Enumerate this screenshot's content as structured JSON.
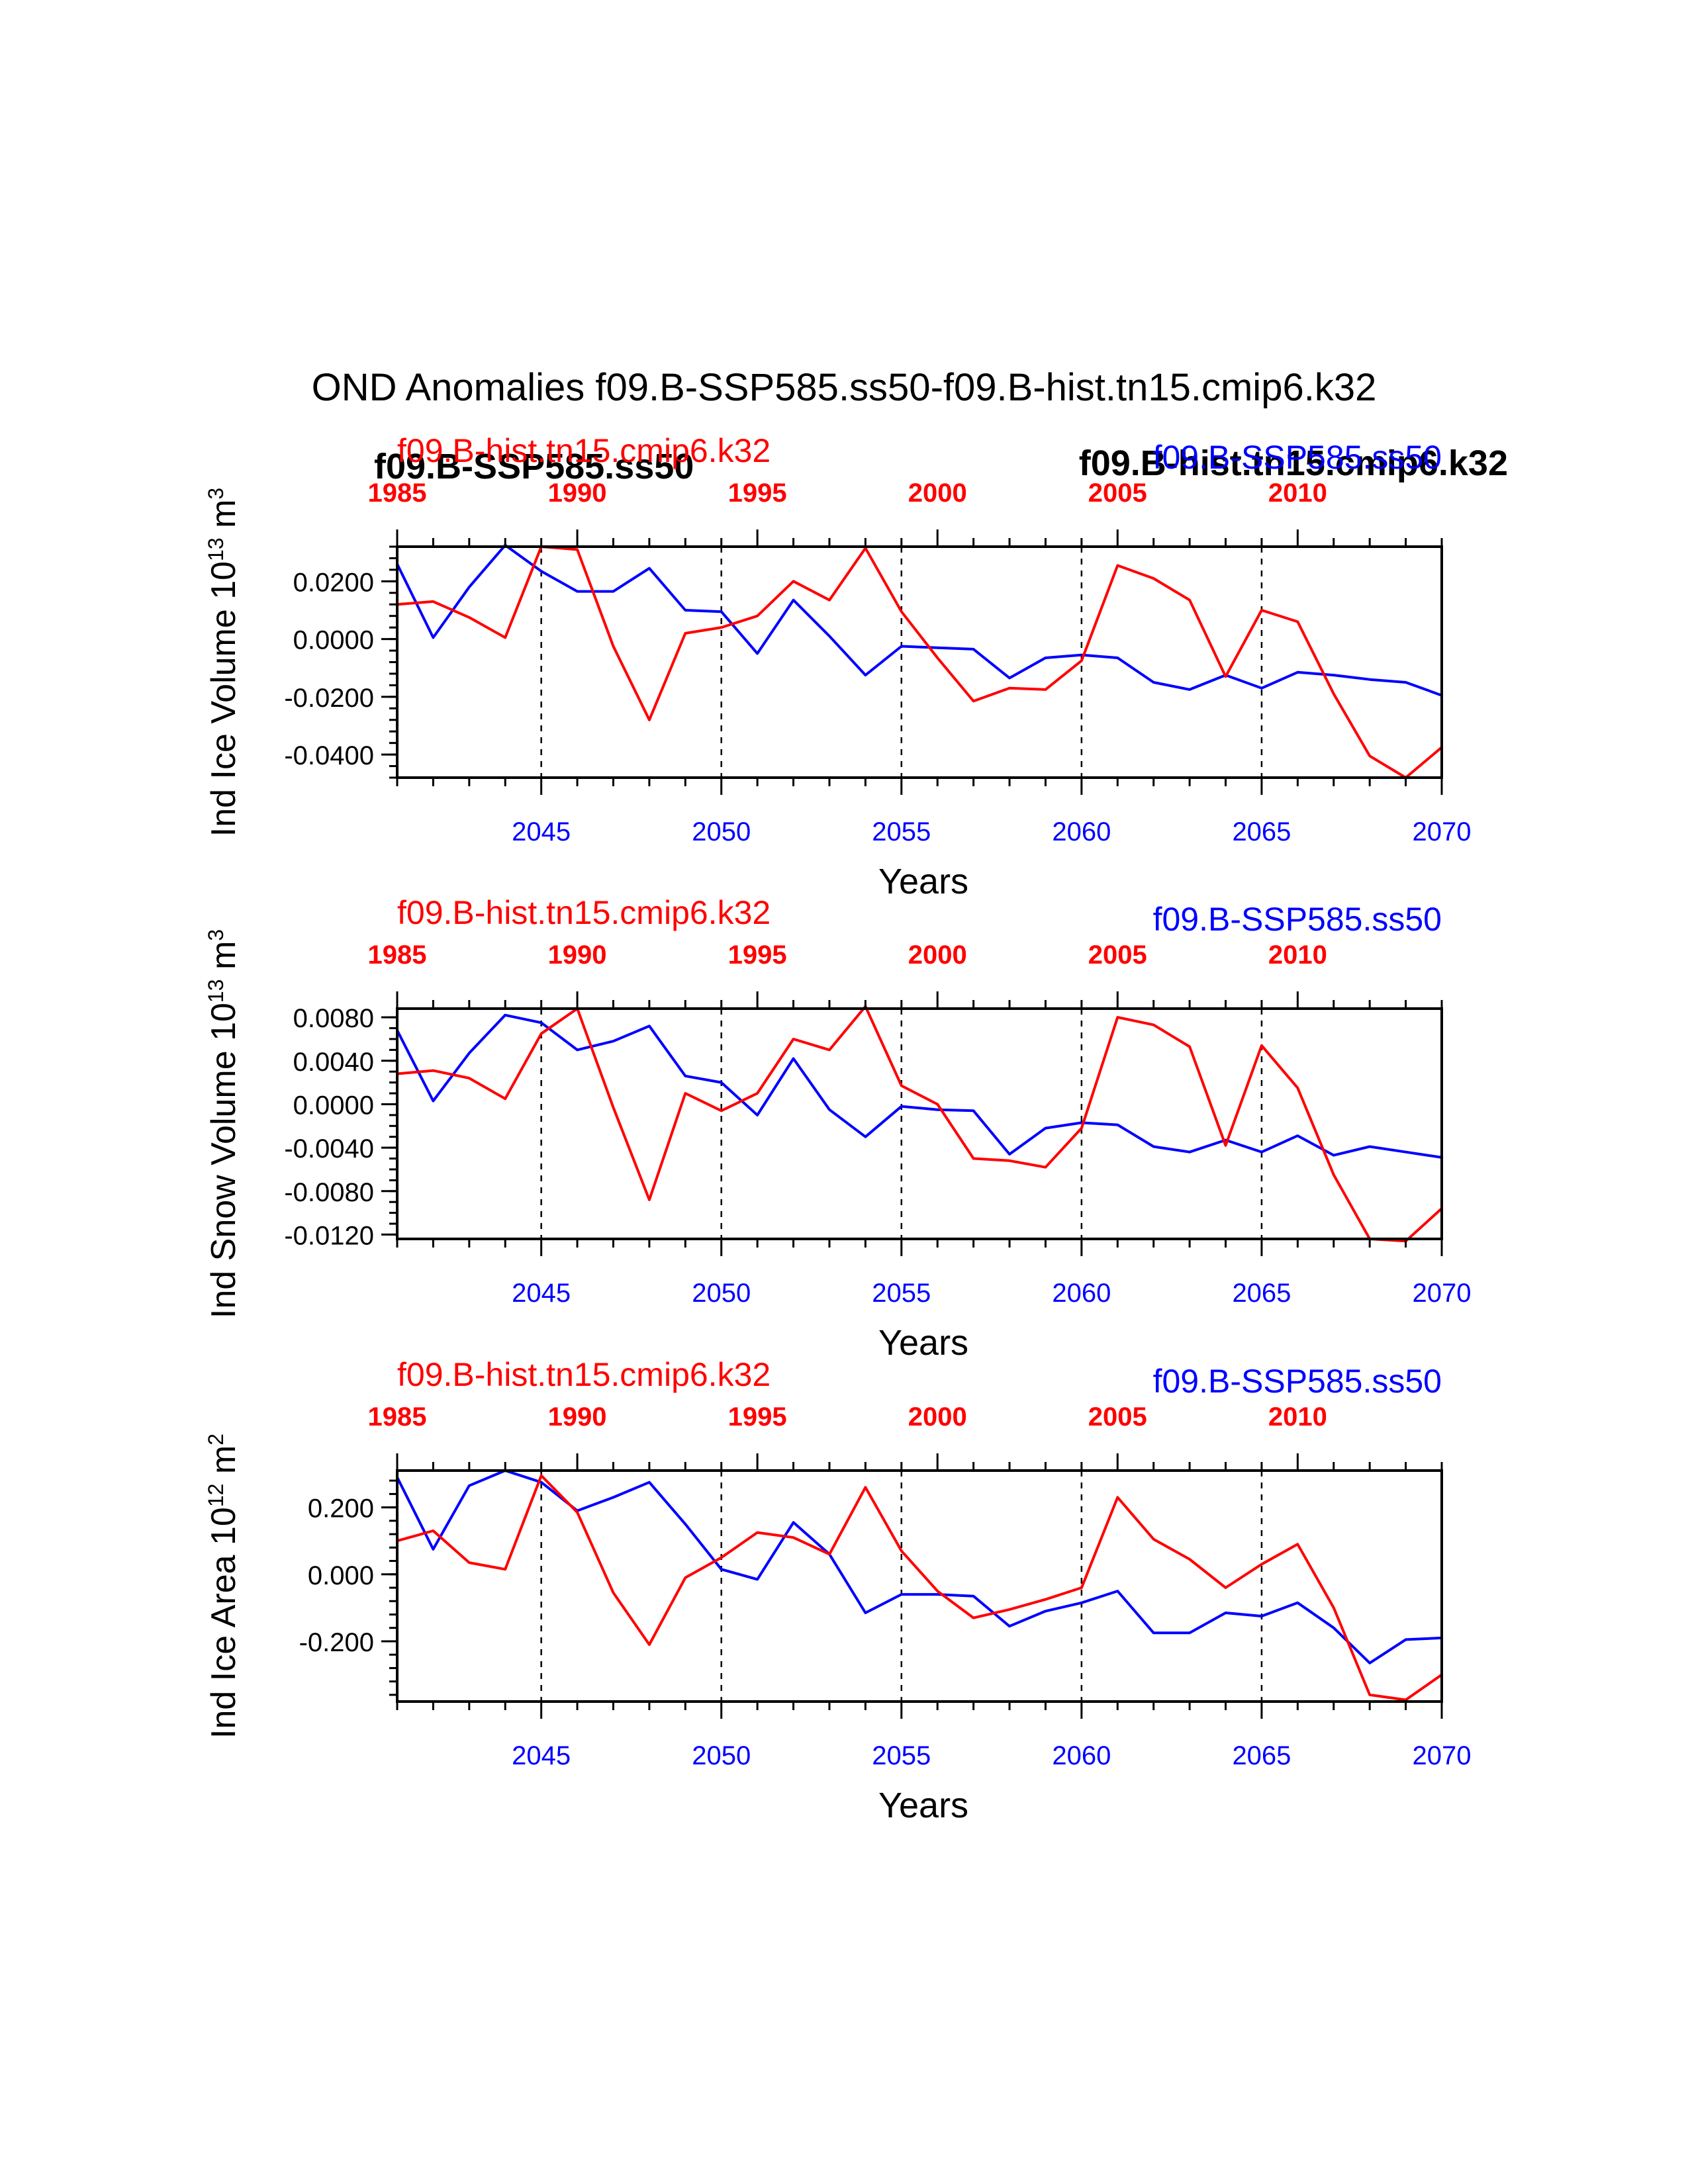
{
  "title": "OND Anomalies f09.B-SSP585.ss50-f09.B-hist.tn15.cmip6.k32",
  "colors": {
    "hist": "#ff0000",
    "ssp": "#0000ff",
    "axis": "#000000"
  },
  "overlay_labels": {
    "ssp_bold": "f09.B-SSP585.ss50",
    "hist_bold": "f09.B-hist.tn15.cmip6.k32"
  },
  "chart_data": [
    {
      "type": "line",
      "ylabel": "Ind Ice Volume 10",
      "ylabel_exp": "13",
      "ylabel_unit": "m",
      "ylabel_unit_exp": "3",
      "xlabel": "Years",
      "top_series_label": "f09.B-hist.tn15.cmip6.k32",
      "bottom_series_label": "f09.B-SSP585.ss50",
      "ylim": [
        -0.048,
        0.032
      ],
      "yticks": [
        -0.04,
        -0.02,
        0.0,
        0.02
      ],
      "ytick_labels": [
        "-0.0400",
        "-0.0200",
        "0.0000",
        "0.0200"
      ],
      "yminor_step": 0.004,
      "xlim": [
        2041,
        2070
      ],
      "top_xlim": [
        1985,
        2014
      ],
      "bottom_ticks": [
        2045,
        2050,
        2055,
        2060,
        2065,
        2070
      ],
      "bottom_tick_labels": [
        "2045",
        "2050",
        "2055",
        "2060",
        "2065",
        "2070"
      ],
      "top_ticks": [
        1985,
        1990,
        1995,
        2000,
        2005,
        2010
      ],
      "top_tick_labels": [
        "1985",
        "1990",
        "1995",
        "2000",
        "2005",
        "2010"
      ],
      "dashed_x": [
        2045,
        2050,
        2055,
        2060,
        2065
      ],
      "x": [
        2041,
        2042,
        2043,
        2044,
        2045,
        2046,
        2047,
        2048,
        2049,
        2050,
        2051,
        2052,
        2053,
        2054,
        2055,
        2056,
        2057,
        2058,
        2059,
        2060,
        2061,
        2062,
        2063,
        2064,
        2065,
        2066,
        2067,
        2068,
        2069,
        2070
      ],
      "series": [
        {
          "key": "ssp",
          "values": [
            0.026,
            0.0005,
            0.018,
            0.0325,
            0.0235,
            0.0165,
            0.0165,
            0.0245,
            0.01,
            0.0095,
            -0.005,
            0.0135,
            0.001,
            -0.0125,
            -0.0025,
            -0.003,
            -0.0035,
            -0.0135,
            -0.0065,
            -0.0055,
            -0.0065,
            -0.015,
            -0.0175,
            -0.0125,
            -0.017,
            -0.0115,
            -0.0125,
            -0.014,
            -0.015,
            -0.0195
          ]
        },
        {
          "key": "hist",
          "values": [
            0.012,
            0.013,
            0.0075,
            0.0005,
            0.032,
            0.031,
            -0.0025,
            -0.028,
            0.002,
            0.004,
            0.008,
            0.02,
            0.0135,
            0.0315,
            0.0095,
            -0.0065,
            -0.0215,
            -0.017,
            -0.0175,
            -0.0075,
            0.0255,
            0.021,
            0.0135,
            -0.013,
            0.01,
            0.006,
            -0.019,
            -0.0405,
            -0.048,
            -0.0375
          ]
        }
      ]
    },
    {
      "type": "line",
      "ylabel": "Ind Snow Volume 10",
      "ylabel_exp": "13",
      "ylabel_unit": "m",
      "ylabel_unit_exp": "3",
      "xlabel": "Years",
      "top_series_label": "f09.B-hist.tn15.cmip6.k32",
      "bottom_series_label": "f09.B-SSP585.ss50",
      "ylim": [
        -0.0124,
        0.0088
      ],
      "yticks": [
        -0.012,
        -0.008,
        -0.004,
        0.0,
        0.004,
        0.008
      ],
      "ytick_labels": [
        "-0.0120",
        "-0.0080",
        "-0.0040",
        "0.0000",
        "0.0040",
        "0.0080"
      ],
      "yminor_step": 0.001,
      "xlim": [
        2041,
        2070
      ],
      "top_xlim": [
        1985,
        2014
      ],
      "bottom_ticks": [
        2045,
        2050,
        2055,
        2060,
        2065,
        2070
      ],
      "bottom_tick_labels": [
        "2045",
        "2050",
        "2055",
        "2060",
        "2065",
        "2070"
      ],
      "top_ticks": [
        1985,
        1990,
        1995,
        2000,
        2005,
        2010
      ],
      "top_tick_labels": [
        "1985",
        "1990",
        "1995",
        "2000",
        "2005",
        "2010"
      ],
      "dashed_x": [
        2045,
        2050,
        2055,
        2060,
        2065
      ],
      "x": [
        2041,
        2042,
        2043,
        2044,
        2045,
        2046,
        2047,
        2048,
        2049,
        2050,
        2051,
        2052,
        2053,
        2054,
        2055,
        2056,
        2057,
        2058,
        2059,
        2060,
        2061,
        2062,
        2063,
        2064,
        2065,
        2066,
        2067,
        2068,
        2069,
        2070
      ],
      "series": [
        {
          "key": "ssp",
          "values": [
            0.0068,
            0.0003,
            0.0047,
            0.0082,
            0.0075,
            0.005,
            0.0058,
            0.0072,
            0.0026,
            0.002,
            -0.001,
            0.0042,
            -0.0005,
            -0.003,
            -0.0002,
            -0.0005,
            -0.0006,
            -0.0046,
            -0.0022,
            -0.0017,
            -0.0019,
            -0.0039,
            -0.0044,
            -0.0033,
            -0.0044,
            -0.0029,
            -0.0047,
            -0.0039,
            -0.0044,
            -0.0049
          ]
        },
        {
          "key": "hist",
          "values": [
            0.0028,
            0.0031,
            0.0024,
            0.0005,
            0.0065,
            0.0088,
            -0.0003,
            -0.0088,
            0.001,
            -0.0006,
            0.001,
            0.006,
            0.005,
            0.009,
            0.0017,
            0.0,
            -0.005,
            -0.0052,
            -0.0058,
            -0.0022,
            0.008,
            0.0073,
            0.0053,
            -0.0038,
            0.0054,
            0.0015,
            -0.0065,
            -0.0124,
            -0.0126,
            -0.0096
          ]
        }
      ]
    },
    {
      "type": "line",
      "ylabel": "Ind Ice Area 10",
      "ylabel_exp": "12",
      "ylabel_unit": "m",
      "ylabel_unit_exp": "2",
      "xlabel": "Years",
      "top_series_label": "f09.B-hist.tn15.cmip6.k32",
      "bottom_series_label": "f09.B-SSP585.ss50",
      "ylim": [
        -0.38,
        0.31
      ],
      "yticks": [
        -0.2,
        0.0,
        0.2
      ],
      "ytick_labels": [
        "-0.200",
        "0.000",
        "0.200"
      ],
      "yminor_step": 0.04,
      "xlim": [
        2041,
        2070
      ],
      "top_xlim": [
        1985,
        2014
      ],
      "bottom_ticks": [
        2045,
        2050,
        2055,
        2060,
        2065,
        2070
      ],
      "bottom_tick_labels": [
        "2045",
        "2050",
        "2055",
        "2060",
        "2065",
        "2070"
      ],
      "top_ticks": [
        1985,
        1990,
        1995,
        2000,
        2005,
        2010
      ],
      "top_tick_labels": [
        "1985",
        "1990",
        "1995",
        "2000",
        "2005",
        "2010"
      ],
      "dashed_x": [
        2045,
        2050,
        2055,
        2060,
        2065
      ],
      "x": [
        2041,
        2042,
        2043,
        2044,
        2045,
        2046,
        2047,
        2048,
        2049,
        2050,
        2051,
        2052,
        2053,
        2054,
        2055,
        2056,
        2057,
        2058,
        2059,
        2060,
        2061,
        2062,
        2063,
        2064,
        2065,
        2066,
        2067,
        2068,
        2069,
        2070
      ],
      "series": [
        {
          "key": "ssp",
          "values": [
            0.29,
            0.075,
            0.265,
            0.31,
            0.275,
            0.19,
            0.23,
            0.275,
            0.15,
            0.015,
            -0.015,
            0.155,
            0.06,
            -0.115,
            -0.06,
            -0.06,
            -0.065,
            -0.155,
            -0.11,
            -0.085,
            -0.05,
            -0.175,
            -0.175,
            -0.115,
            -0.125,
            -0.085,
            -0.16,
            -0.265,
            -0.195,
            -0.19
          ]
        },
        {
          "key": "hist",
          "values": [
            0.1,
            0.13,
            0.035,
            0.015,
            0.295,
            0.185,
            -0.055,
            -0.21,
            -0.01,
            0.05,
            0.125,
            0.11,
            0.06,
            0.26,
            0.07,
            -0.05,
            -0.13,
            -0.105,
            -0.075,
            -0.04,
            0.23,
            0.105,
            0.045,
            -0.04,
            0.03,
            0.09,
            -0.1,
            -0.36,
            -0.375,
            -0.3
          ]
        }
      ]
    }
  ]
}
